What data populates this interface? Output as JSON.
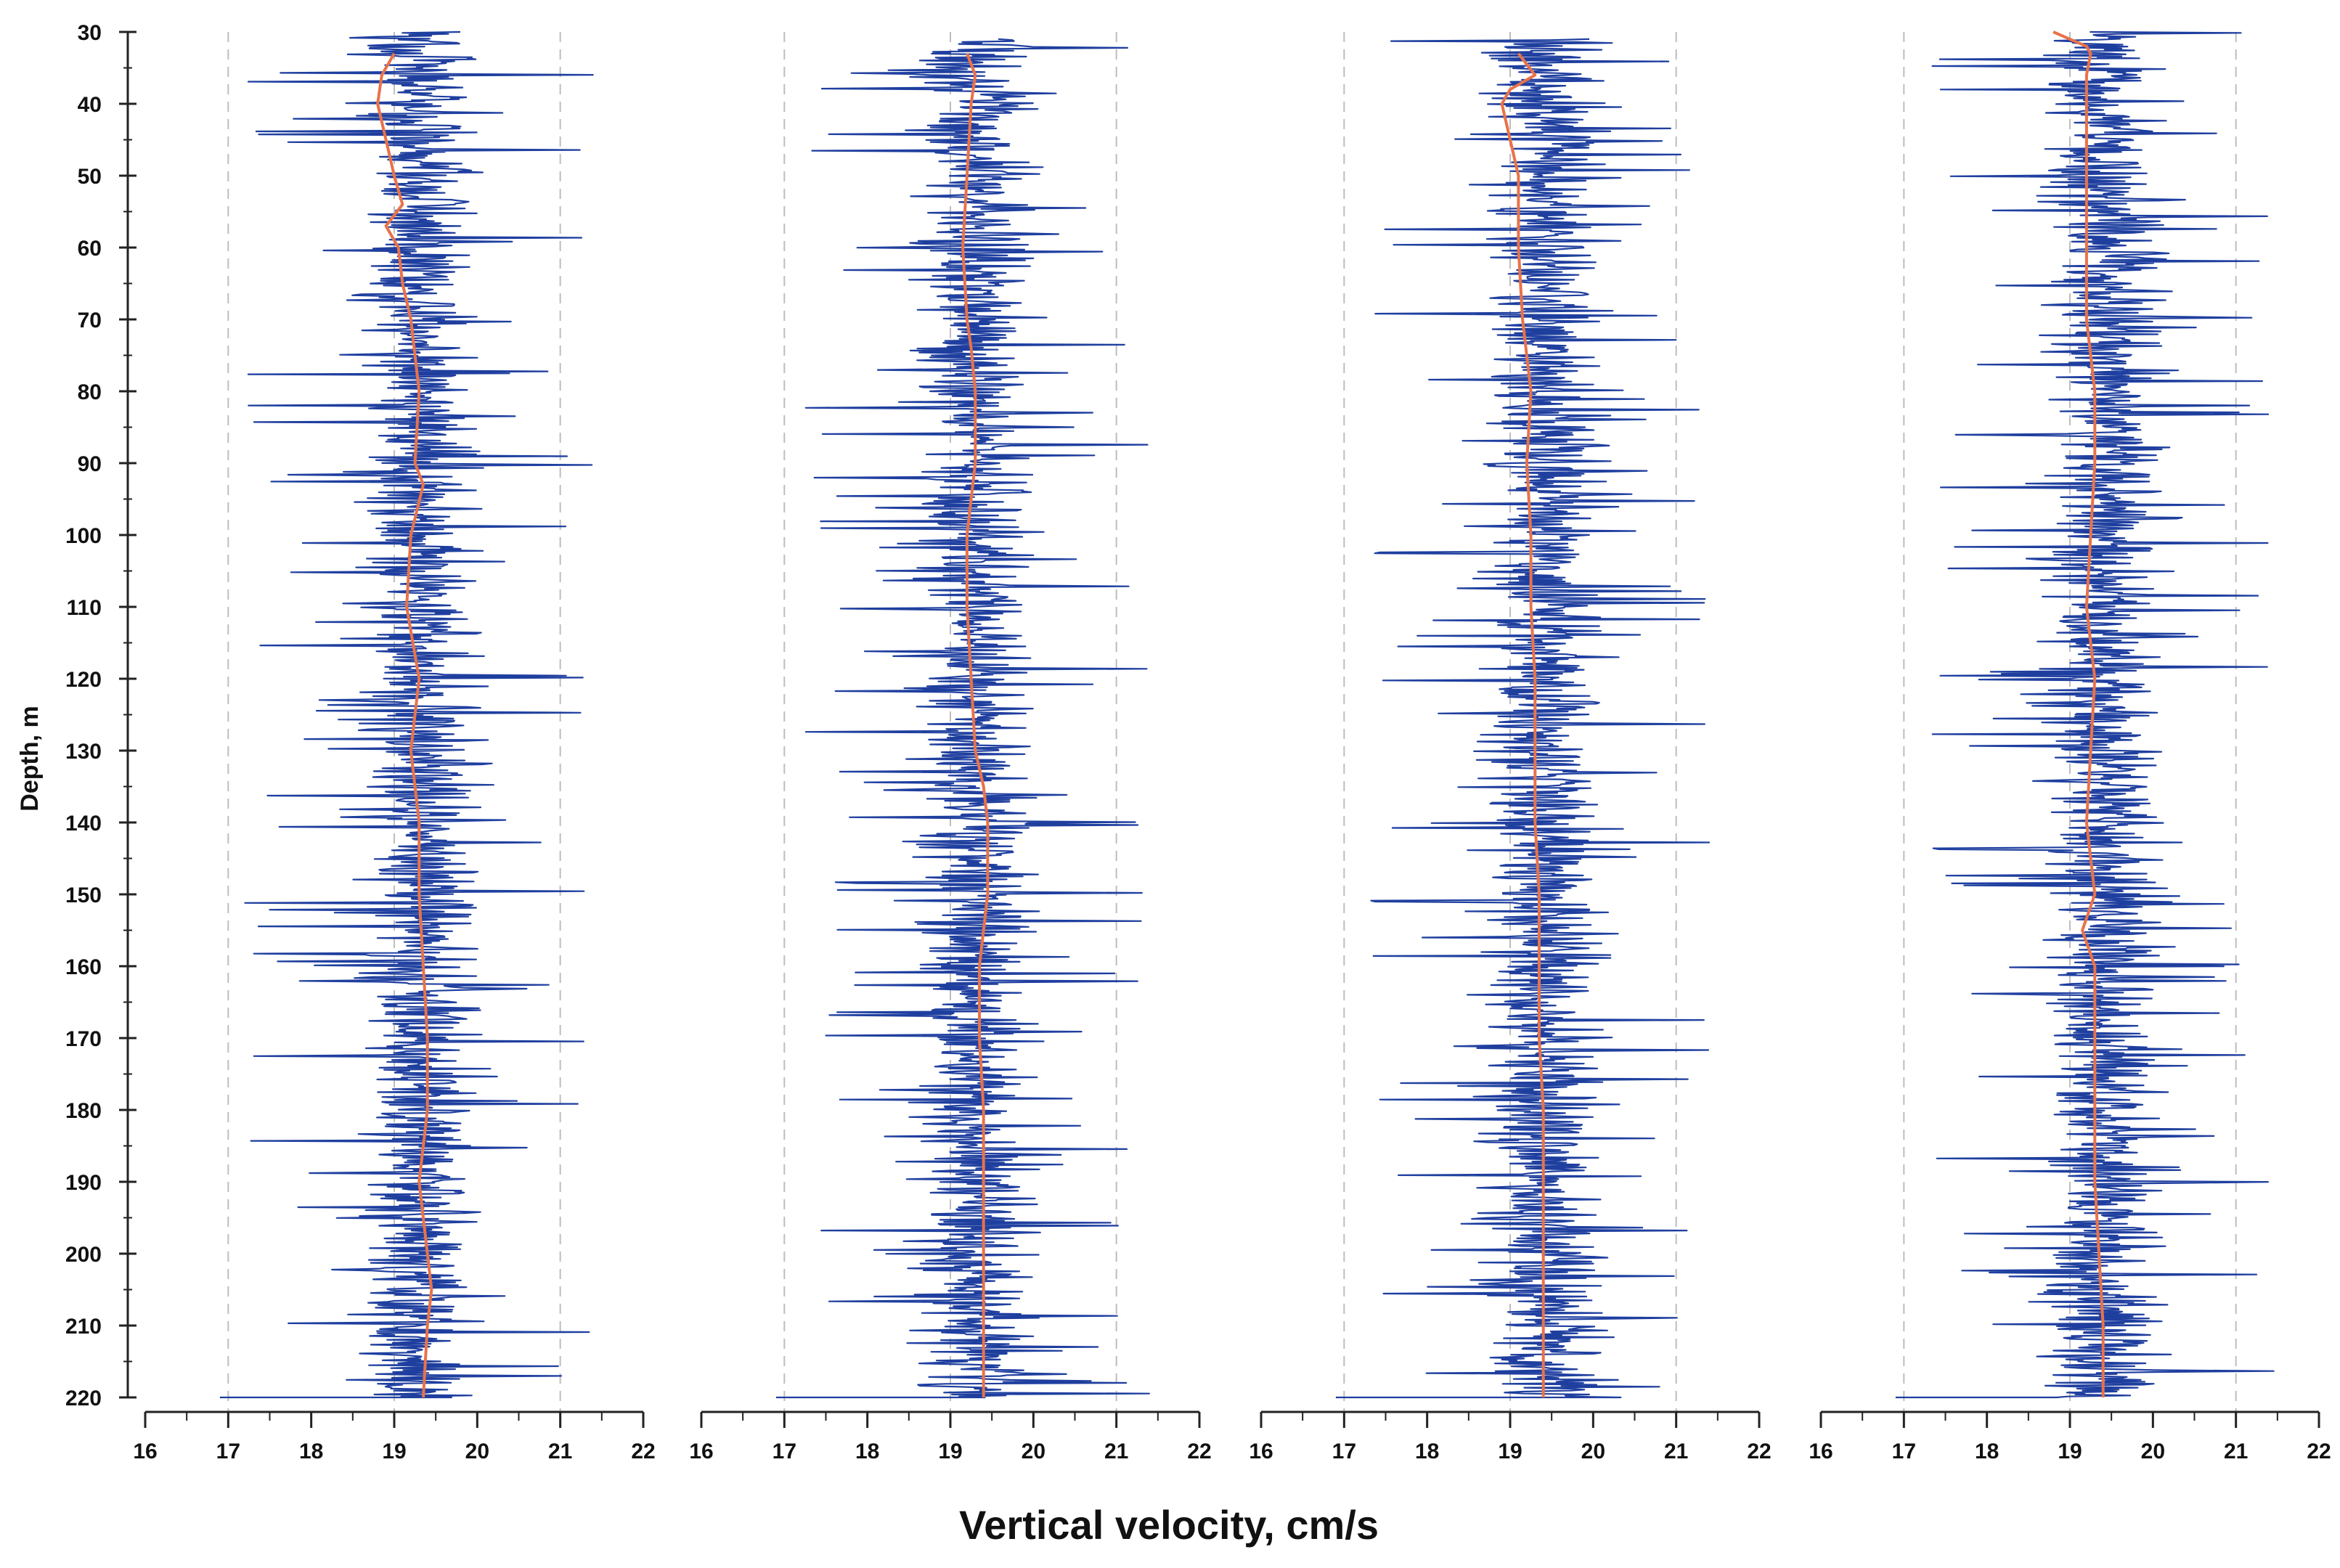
{
  "chart_data": {
    "type": "line",
    "panels": 4,
    "xlabel": "Vertical velocity, cm/s",
    "ylabel": "Depth, m",
    "xlim": [
      16,
      22
    ],
    "ylim": [
      30,
      220
    ],
    "y_inverted": true,
    "xticks": [
      16,
      17,
      18,
      19,
      20,
      21,
      22
    ],
    "yticks": [
      30,
      40,
      50,
      60,
      70,
      80,
      90,
      100,
      110,
      120,
      130,
      140,
      150,
      160,
      170,
      180,
      190,
      200,
      210,
      220
    ],
    "grid": "dashed vertical at 17, 19, 21",
    "series_style": {
      "raw": {
        "color": "#1f3f9f",
        "description": "instantaneous vertical velocity, approx. 17.5–21 cm/s"
      },
      "mean": {
        "color": "#e8724a",
        "description": "running mean profile"
      }
    },
    "panels_data": [
      {
        "raw_spread": [
          18.4,
          20.2
        ],
        "raw_start_depth": 30,
        "mean": {
          "depth": [
            33,
            36,
            40,
            45,
            50,
            54,
            57,
            60,
            65,
            70,
            80,
            90,
            93,
            100,
            110,
            120,
            130,
            140,
            150,
            160,
            170,
            180,
            190,
            200,
            205,
            210,
            220
          ],
          "velocity": [
            19.0,
            18.85,
            18.8,
            18.9,
            19.0,
            19.1,
            18.9,
            19.05,
            19.1,
            19.2,
            19.3,
            19.25,
            19.35,
            19.2,
            19.15,
            19.3,
            19.2,
            19.3,
            19.3,
            19.35,
            19.4,
            19.4,
            19.3,
            19.4,
            19.45,
            19.4,
            19.35
          ]
        }
      },
      {
        "raw_spread": [
          18.4,
          20.2
        ],
        "raw_start_depth": 31,
        "mean": {
          "depth": [
            33,
            36,
            40,
            50,
            60,
            70,
            74,
            80,
            90,
            100,
            110,
            120,
            130,
            135,
            140,
            150,
            160,
            170,
            180,
            190,
            200,
            210,
            220
          ],
          "velocity": [
            19.2,
            19.3,
            19.25,
            19.2,
            19.15,
            19.2,
            19.25,
            19.3,
            19.3,
            19.2,
            19.2,
            19.25,
            19.3,
            19.4,
            19.45,
            19.45,
            19.35,
            19.35,
            19.4,
            19.4,
            19.4,
            19.4,
            19.4
          ]
        }
      },
      {
        "raw_spread": [
          18.5,
          20.3
        ],
        "raw_start_depth": 31,
        "mean": {
          "depth": [
            33,
            36,
            38,
            40,
            45,
            50,
            60,
            70,
            80,
            90,
            100,
            110,
            120,
            130,
            140,
            150,
            160,
            170,
            180,
            190,
            200,
            210,
            220
          ],
          "velocity": [
            19.1,
            19.3,
            19.0,
            18.9,
            19.0,
            19.1,
            19.1,
            19.15,
            19.25,
            19.2,
            19.25,
            19.25,
            19.3,
            19.3,
            19.3,
            19.35,
            19.35,
            19.35,
            19.4,
            19.4,
            19.4,
            19.4,
            19.4
          ]
        }
      },
      {
        "raw_spread": [
          18.5,
          20.3
        ],
        "raw_start_depth": 30,
        "mean": {
          "depth": [
            30,
            31,
            32,
            33,
            36,
            40,
            50,
            60,
            70,
            80,
            90,
            100,
            110,
            120,
            130,
            140,
            150,
            155,
            160,
            170,
            180,
            190,
            200,
            210,
            220
          ],
          "velocity": [
            18.8,
            19.0,
            19.2,
            19.25,
            19.2,
            19.2,
            19.2,
            19.2,
            19.2,
            19.3,
            19.3,
            19.25,
            19.2,
            19.3,
            19.25,
            19.2,
            19.3,
            19.15,
            19.3,
            19.3,
            19.3,
            19.3,
            19.35,
            19.4,
            19.4
          ]
        }
      }
    ]
  }
}
